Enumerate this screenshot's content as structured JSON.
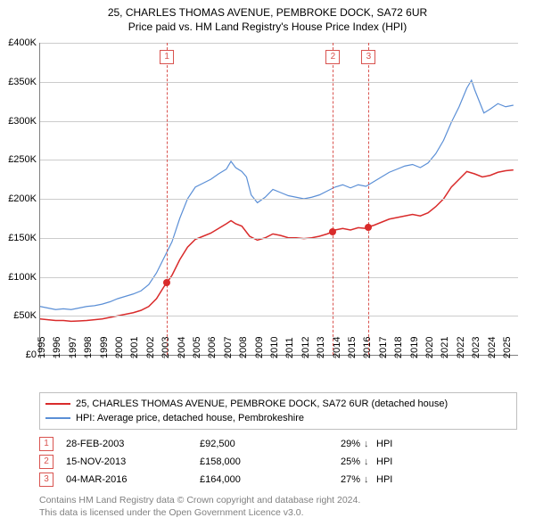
{
  "title_line1": "25, CHARLES THOMAS AVENUE, PEMBROKE DOCK, SA72 6UR",
  "title_line2": "Price paid vs. HM Land Registry's House Price Index (HPI)",
  "chart": {
    "type": "line",
    "background_color": "#ffffff",
    "grid_color": "#cccccc",
    "axis_color": "#808080",
    "x_range": [
      1995,
      2025.8
    ],
    "y_range": [
      0,
      400000
    ],
    "y_ticks": [
      0,
      50000,
      100000,
      150000,
      200000,
      250000,
      300000,
      350000,
      400000
    ],
    "y_tick_labels": [
      "£0",
      "£50K",
      "£100K",
      "£150K",
      "£200K",
      "£250K",
      "£300K",
      "£350K",
      "£400K"
    ],
    "x_ticks": [
      1995,
      1996,
      1997,
      1998,
      1999,
      2000,
      2001,
      2002,
      2003,
      2004,
      2005,
      2006,
      2007,
      2008,
      2009,
      2010,
      2011,
      2012,
      2013,
      2014,
      2015,
      2016,
      2017,
      2018,
      2019,
      2020,
      2021,
      2022,
      2023,
      2024,
      2025
    ],
    "x_tick_labels": [
      "1995",
      "1996",
      "1997",
      "1998",
      "1999",
      "2000",
      "2001",
      "2002",
      "2003",
      "2004",
      "2005",
      "2006",
      "2007",
      "2008",
      "2009",
      "2010",
      "2011",
      "2012",
      "2013",
      "2014",
      "2015",
      "2016",
      "2017",
      "2018",
      "2019",
      "2020",
      "2021",
      "2022",
      "2023",
      "2024",
      "2025"
    ],
    "y_label_fontsize": 11,
    "x_label_fontsize": 11,
    "series": [
      {
        "name": "price_paid",
        "label": "25, CHARLES THOMAS AVENUE, PEMBROKE DOCK, SA72 6UR (detached house)",
        "color": "#d92b2b",
        "line_width": 1.5,
        "data": [
          [
            1995.0,
            46000
          ],
          [
            1995.5,
            45000
          ],
          [
            1996.0,
            44000
          ],
          [
            1996.5,
            44000
          ],
          [
            1997.0,
            43000
          ],
          [
            1997.5,
            43500
          ],
          [
            1998.0,
            44000
          ],
          [
            1998.5,
            45000
          ],
          [
            1999.0,
            46000
          ],
          [
            1999.5,
            48000
          ],
          [
            2000.0,
            50000
          ],
          [
            2000.5,
            52000
          ],
          [
            2001.0,
            54000
          ],
          [
            2001.5,
            57000
          ],
          [
            2002.0,
            62000
          ],
          [
            2002.5,
            72000
          ],
          [
            2003.0,
            88000
          ],
          [
            2003.17,
            92500
          ],
          [
            2003.5,
            102000
          ],
          [
            2004.0,
            122000
          ],
          [
            2004.5,
            138000
          ],
          [
            2005.0,
            148000
          ],
          [
            2005.5,
            152000
          ],
          [
            2006.0,
            156000
          ],
          [
            2006.5,
            162000
          ],
          [
            2007.0,
            168000
          ],
          [
            2007.3,
            172000
          ],
          [
            2007.6,
            168000
          ],
          [
            2008.0,
            165000
          ],
          [
            2008.5,
            152000
          ],
          [
            2009.0,
            147000
          ],
          [
            2009.5,
            150000
          ],
          [
            2010.0,
            155000
          ],
          [
            2010.5,
            153000
          ],
          [
            2011.0,
            150000
          ],
          [
            2011.5,
            150000
          ],
          [
            2012.0,
            149000
          ],
          [
            2012.5,
            150000
          ],
          [
            2013.0,
            152000
          ],
          [
            2013.5,
            155000
          ],
          [
            2013.87,
            158000
          ],
          [
            2014.0,
            160000
          ],
          [
            2014.5,
            162000
          ],
          [
            2015.0,
            160000
          ],
          [
            2015.5,
            163000
          ],
          [
            2016.0,
            162000
          ],
          [
            2016.17,
            164000
          ],
          [
            2016.5,
            166000
          ],
          [
            2017.0,
            170000
          ],
          [
            2017.5,
            174000
          ],
          [
            2018.0,
            176000
          ],
          [
            2018.5,
            178000
          ],
          [
            2019.0,
            180000
          ],
          [
            2019.5,
            178000
          ],
          [
            2020.0,
            182000
          ],
          [
            2020.5,
            190000
          ],
          [
            2021.0,
            200000
          ],
          [
            2021.5,
            215000
          ],
          [
            2022.0,
            225000
          ],
          [
            2022.5,
            235000
          ],
          [
            2023.0,
            232000
          ],
          [
            2023.5,
            228000
          ],
          [
            2024.0,
            230000
          ],
          [
            2024.5,
            234000
          ],
          [
            2025.0,
            236000
          ],
          [
            2025.5,
            237000
          ]
        ]
      },
      {
        "name": "hpi",
        "label": "HPI: Average price, detached house, Pembrokeshire",
        "color": "#5b8fd6",
        "line_width": 1.2,
        "data": [
          [
            1995.0,
            62000
          ],
          [
            1995.5,
            60000
          ],
          [
            1996.0,
            58000
          ],
          [
            1996.5,
            59000
          ],
          [
            1997.0,
            58000
          ],
          [
            1997.5,
            60000
          ],
          [
            1998.0,
            62000
          ],
          [
            1998.5,
            63000
          ],
          [
            1999.0,
            65000
          ],
          [
            1999.5,
            68000
          ],
          [
            2000.0,
            72000
          ],
          [
            2000.5,
            75000
          ],
          [
            2001.0,
            78000
          ],
          [
            2001.5,
            82000
          ],
          [
            2002.0,
            90000
          ],
          [
            2002.5,
            105000
          ],
          [
            2003.0,
            125000
          ],
          [
            2003.5,
            145000
          ],
          [
            2004.0,
            175000
          ],
          [
            2004.5,
            200000
          ],
          [
            2005.0,
            215000
          ],
          [
            2005.5,
            220000
          ],
          [
            2006.0,
            225000
          ],
          [
            2006.5,
            232000
          ],
          [
            2007.0,
            238000
          ],
          [
            2007.3,
            248000
          ],
          [
            2007.6,
            240000
          ],
          [
            2008.0,
            235000
          ],
          [
            2008.3,
            228000
          ],
          [
            2008.6,
            205000
          ],
          [
            2009.0,
            195000
          ],
          [
            2009.5,
            202000
          ],
          [
            2010.0,
            212000
          ],
          [
            2010.5,
            208000
          ],
          [
            2011.0,
            204000
          ],
          [
            2011.5,
            202000
          ],
          [
            2012.0,
            200000
          ],
          [
            2012.5,
            202000
          ],
          [
            2013.0,
            205000
          ],
          [
            2013.5,
            210000
          ],
          [
            2014.0,
            215000
          ],
          [
            2014.5,
            218000
          ],
          [
            2015.0,
            214000
          ],
          [
            2015.5,
            218000
          ],
          [
            2016.0,
            216000
          ],
          [
            2016.5,
            222000
          ],
          [
            2017.0,
            228000
          ],
          [
            2017.5,
            234000
          ],
          [
            2018.0,
            238000
          ],
          [
            2018.5,
            242000
          ],
          [
            2019.0,
            244000
          ],
          [
            2019.5,
            240000
          ],
          [
            2020.0,
            246000
          ],
          [
            2020.5,
            258000
          ],
          [
            2021.0,
            275000
          ],
          [
            2021.5,
            298000
          ],
          [
            2022.0,
            318000
          ],
          [
            2022.5,
            342000
          ],
          [
            2022.8,
            352000
          ],
          [
            2023.0,
            340000
          ],
          [
            2023.3,
            325000
          ],
          [
            2023.6,
            310000
          ],
          [
            2024.0,
            315000
          ],
          [
            2024.5,
            322000
          ],
          [
            2025.0,
            318000
          ],
          [
            2025.5,
            320000
          ]
        ]
      }
    ],
    "markers": [
      {
        "n": "1",
        "x": 2003.17,
        "y": 92500
      },
      {
        "n": "2",
        "x": 2013.87,
        "y": 158000
      },
      {
        "n": "3",
        "x": 2016.17,
        "y": 164000
      }
    ],
    "marker_line_color": "#d9534f",
    "marker_badge_border": "#d9534f",
    "marker_badge_text": "#d9534f",
    "dot_color": "#d92b2b"
  },
  "legend": {
    "border_color": "#bfbfbf",
    "items": [
      {
        "color": "#d92b2b",
        "label": "25, CHARLES THOMAS AVENUE, PEMBROKE DOCK, SA72 6UR (detached house)"
      },
      {
        "color": "#5b8fd6",
        "label": "HPI: Average price, detached house, Pembrokeshire"
      }
    ]
  },
  "transactions": [
    {
      "n": "1",
      "date": "28-FEB-2003",
      "price": "£92,500",
      "pct": "29%",
      "arrow": "↓",
      "suffix": "HPI"
    },
    {
      "n": "2",
      "date": "15-NOV-2013",
      "price": "£158,000",
      "pct": "25%",
      "arrow": "↓",
      "suffix": "HPI"
    },
    {
      "n": "3",
      "date": "04-MAR-2016",
      "price": "£164,000",
      "pct": "27%",
      "arrow": "↓",
      "suffix": "HPI"
    }
  ],
  "footer_line1": "Contains HM Land Registry data © Crown copyright and database right 2024.",
  "footer_line2": "This data is licensed under the Open Government Licence v3.0.",
  "footer_color": "#808080"
}
